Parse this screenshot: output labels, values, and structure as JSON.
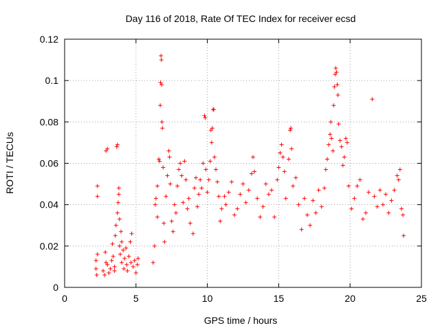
{
  "chart_data": {
    "type": "scatter",
    "title": "Day 116 of 2018, Rate Of TEC Index for receiver ecsd",
    "xlabel": "GPS time / hours",
    "ylabel": "ROTI / TECUs",
    "xlim": [
      0,
      25
    ],
    "ylim": [
      0,
      0.12
    ],
    "xticks": [
      0,
      5,
      10,
      15,
      20,
      25
    ],
    "yticks": [
      0,
      0.02,
      0.04,
      0.06,
      0.08,
      0.1,
      0.12
    ],
    "xtick_labels": [
      "0",
      "5",
      "10",
      "15",
      "20",
      "25"
    ],
    "ytick_labels": [
      "0",
      "0.02",
      "0.04",
      "0.06",
      "0.08",
      "0.1",
      "0.12"
    ],
    "grid": true,
    "marker": "+",
    "color": "#ff0000",
    "series": [
      {
        "points": [
          [
            2.2,
            0.013
          ],
          [
            2.2,
            0.009
          ],
          [
            2.25,
            0.006
          ],
          [
            2.3,
            0.016
          ],
          [
            2.3,
            0.049
          ],
          [
            2.3,
            0.044
          ],
          [
            2.7,
            0.008
          ],
          [
            2.8,
            0.006
          ],
          [
            2.85,
            0.017
          ],
          [
            2.9,
            0.012
          ],
          [
            2.9,
            0.066
          ],
          [
            3.0,
            0.067
          ],
          [
            3.0,
            0.011
          ],
          [
            3.1,
            0.007
          ],
          [
            3.2,
            0.009
          ],
          [
            3.3,
            0.013
          ],
          [
            3.35,
            0.021
          ],
          [
            3.4,
            0.015
          ],
          [
            3.5,
            0.01
          ],
          [
            3.5,
            0.008
          ],
          [
            3.55,
            0.025
          ],
          [
            3.6,
            0.03
          ],
          [
            3.65,
            0.068
          ],
          [
            3.7,
            0.069
          ],
          [
            3.7,
            0.036
          ],
          [
            3.75,
            0.041
          ],
          [
            3.8,
            0.045
          ],
          [
            3.8,
            0.048
          ],
          [
            3.85,
            0.033
          ],
          [
            3.85,
            0.02
          ],
          [
            3.9,
            0.016
          ],
          [
            3.95,
            0.027
          ],
          [
            4.0,
            0.022
          ],
          [
            4.0,
            0.012
          ],
          [
            4.1,
            0.018
          ],
          [
            4.15,
            0.009
          ],
          [
            4.2,
            0.014
          ],
          [
            4.3,
            0.019
          ],
          [
            4.35,
            0.011
          ],
          [
            4.4,
            0.008
          ],
          [
            4.5,
            0.015
          ],
          [
            4.6,
            0.022
          ],
          [
            4.65,
            0.012
          ],
          [
            4.7,
            0.026
          ],
          [
            4.8,
            0.01
          ],
          [
            4.9,
            0.013
          ],
          [
            5.0,
            0.007
          ],
          [
            5.1,
            0.011
          ],
          [
            5.15,
            0.014
          ],
          [
            6.2,
            0.012
          ],
          [
            6.3,
            0.02
          ],
          [
            6.35,
            0.04
          ],
          [
            6.4,
            0.043
          ],
          [
            6.5,
            0.034
          ],
          [
            6.5,
            0.049
          ],
          [
            6.6,
            0.062
          ],
          [
            6.65,
            0.061
          ],
          [
            6.7,
            0.088
          ],
          [
            6.72,
            0.099
          ],
          [
            6.75,
            0.112
          ],
          [
            6.78,
            0.11
          ],
          [
            6.8,
            0.098
          ],
          [
            6.82,
            0.08
          ],
          [
            6.85,
            0.077
          ],
          [
            6.9,
            0.058
          ],
          [
            6.95,
            0.031
          ],
          [
            7.0,
            0.022
          ],
          [
            7.1,
            0.044
          ],
          [
            7.2,
            0.054
          ],
          [
            7.3,
            0.066
          ],
          [
            7.35,
            0.063
          ],
          [
            7.4,
            0.05
          ],
          [
            7.5,
            0.032
          ],
          [
            7.6,
            0.027
          ],
          [
            7.7,
            0.04
          ],
          [
            7.8,
            0.036
          ],
          [
            7.9,
            0.049
          ],
          [
            8.0,
            0.057
          ],
          [
            8.1,
            0.06
          ],
          [
            8.2,
            0.054
          ],
          [
            8.3,
            0.041
          ],
          [
            8.4,
            0.061
          ],
          [
            8.5,
            0.052
          ],
          [
            8.6,
            0.038
          ],
          [
            8.7,
            0.043
          ],
          [
            8.8,
            0.031
          ],
          [
            9.0,
            0.026
          ],
          [
            9.1,
            0.048
          ],
          [
            9.2,
            0.053
          ],
          [
            9.3,
            0.039
          ],
          [
            9.4,
            0.045
          ],
          [
            9.5,
            0.052
          ],
          [
            9.6,
            0.048
          ],
          [
            9.7,
            0.06
          ],
          [
            9.8,
            0.083
          ],
          [
            9.85,
            0.082
          ],
          [
            9.9,
            0.057
          ],
          [
            10.0,
            0.046
          ],
          [
            10.1,
            0.052
          ],
          [
            10.2,
            0.061
          ],
          [
            10.25,
            0.076
          ],
          [
            10.3,
            0.07
          ],
          [
            10.35,
            0.077
          ],
          [
            10.4,
            0.086
          ],
          [
            10.45,
            0.086
          ],
          [
            10.5,
            0.063
          ],
          [
            10.6,
            0.057
          ],
          [
            10.7,
            0.051
          ],
          [
            10.8,
            0.044
          ],
          [
            10.9,
            0.032
          ],
          [
            11.0,
            0.038
          ],
          [
            11.2,
            0.044
          ],
          [
            11.3,
            0.04
          ],
          [
            11.5,
            0.046
          ],
          [
            11.7,
            0.051
          ],
          [
            11.9,
            0.035
          ],
          [
            12.1,
            0.038
          ],
          [
            12.3,
            0.045
          ],
          [
            12.5,
            0.05
          ],
          [
            12.7,
            0.041
          ],
          [
            12.9,
            0.047
          ],
          [
            13.1,
            0.055
          ],
          [
            13.2,
            0.063
          ],
          [
            13.3,
            0.056
          ],
          [
            13.5,
            0.043
          ],
          [
            13.7,
            0.034
          ],
          [
            13.9,
            0.039
          ],
          [
            14.1,
            0.05
          ],
          [
            14.3,
            0.045
          ],
          [
            14.5,
            0.047
          ],
          [
            14.7,
            0.034
          ],
          [
            14.9,
            0.052
          ],
          [
            15.0,
            0.058
          ],
          [
            15.1,
            0.065
          ],
          [
            15.2,
            0.069
          ],
          [
            15.3,
            0.063
          ],
          [
            15.4,
            0.056
          ],
          [
            15.5,
            0.043
          ],
          [
            15.7,
            0.062
          ],
          [
            15.8,
            0.076
          ],
          [
            15.85,
            0.077
          ],
          [
            15.9,
            0.067
          ],
          [
            16.0,
            0.049
          ],
          [
            16.2,
            0.053
          ],
          [
            16.4,
            0.04
          ],
          [
            16.6,
            0.028
          ],
          [
            16.8,
            0.043
          ],
          [
            17.0,
            0.035
          ],
          [
            17.2,
            0.03
          ],
          [
            17.4,
            0.042
          ],
          [
            17.6,
            0.036
          ],
          [
            17.8,
            0.047
          ],
          [
            18.0,
            0.039
          ],
          [
            18.2,
            0.048
          ],
          [
            18.3,
            0.057
          ],
          [
            18.4,
            0.062
          ],
          [
            18.5,
            0.069
          ],
          [
            18.6,
            0.074
          ],
          [
            18.65,
            0.08
          ],
          [
            18.7,
            0.072
          ],
          [
            18.8,
            0.066
          ],
          [
            18.85,
            0.088
          ],
          [
            18.9,
            0.097
          ],
          [
            18.95,
            0.103
          ],
          [
            19.0,
            0.106
          ],
          [
            19.05,
            0.104
          ],
          [
            19.1,
            0.098
          ],
          [
            19.15,
            0.093
          ],
          [
            19.2,
            0.079
          ],
          [
            19.3,
            0.071
          ],
          [
            19.4,
            0.068
          ],
          [
            19.5,
            0.059
          ],
          [
            19.6,
            0.063
          ],
          [
            19.7,
            0.072
          ],
          [
            19.8,
            0.07
          ],
          [
            19.9,
            0.049
          ],
          [
            20.1,
            0.038
          ],
          [
            20.3,
            0.043
          ],
          [
            20.5,
            0.049
          ],
          [
            20.7,
            0.052
          ],
          [
            20.9,
            0.033
          ],
          [
            21.1,
            0.036
          ],
          [
            21.3,
            0.046
          ],
          [
            21.55,
            0.091
          ],
          [
            21.7,
            0.044
          ],
          [
            21.9,
            0.039
          ],
          [
            22.1,
            0.047
          ],
          [
            22.3,
            0.04
          ],
          [
            22.5,
            0.045
          ],
          [
            22.7,
            0.036
          ],
          [
            22.9,
            0.042
          ],
          [
            23.1,
            0.047
          ],
          [
            23.3,
            0.054
          ],
          [
            23.4,
            0.052
          ],
          [
            23.5,
            0.057
          ],
          [
            23.6,
            0.038
          ],
          [
            23.7,
            0.035
          ],
          [
            23.75,
            0.025
          ]
        ]
      }
    ]
  }
}
